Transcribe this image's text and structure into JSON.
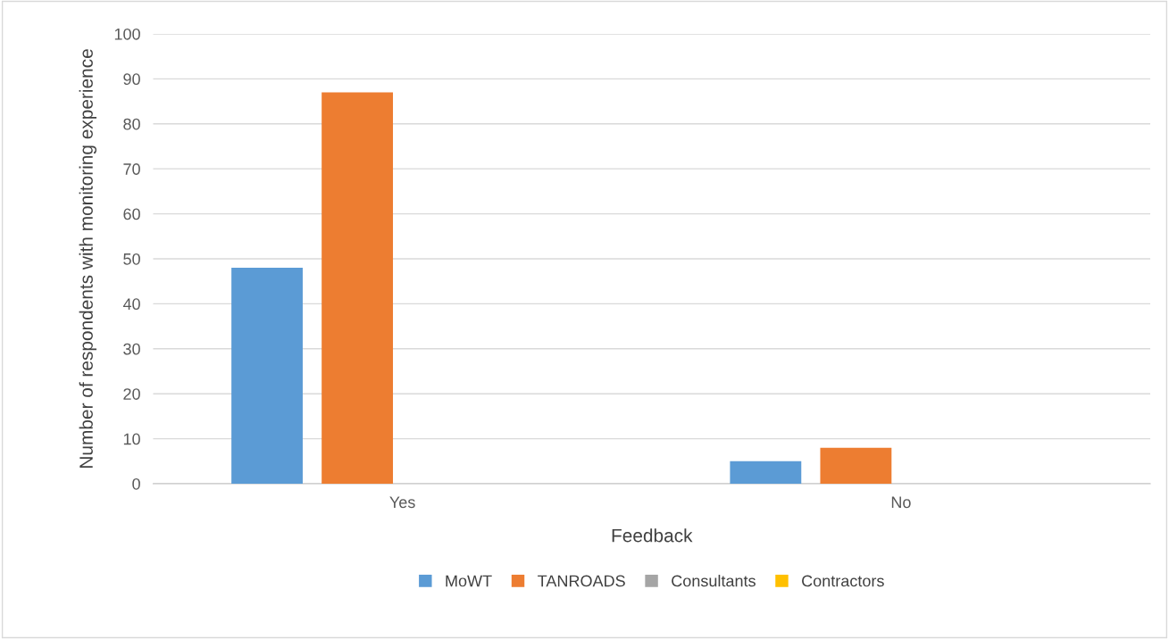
{
  "chart_data": {
    "type": "bar",
    "xlabel": "Feedback",
    "ylabel": "Number of respondents with monitoring experience",
    "categories": [
      "Yes",
      "No"
    ],
    "series": [
      {
        "name": "MoWT",
        "color": "#5b9bd5",
        "values": [
          48,
          5
        ]
      },
      {
        "name": "TANROADS",
        "color": "#ed7d31",
        "values": [
          87,
          8
        ]
      },
      {
        "name": "Consultants",
        "color": "#a5a5a5",
        "values": [
          0,
          0
        ]
      },
      {
        "name": "Contractors",
        "color": "#ffc000",
        "values": [
          0,
          0
        ]
      }
    ],
    "ylim": [
      0,
      100
    ],
    "yticks": [
      0,
      10,
      20,
      30,
      40,
      50,
      60,
      70,
      80,
      90,
      100
    ],
    "grid": "y",
    "legend": "bottom"
  }
}
